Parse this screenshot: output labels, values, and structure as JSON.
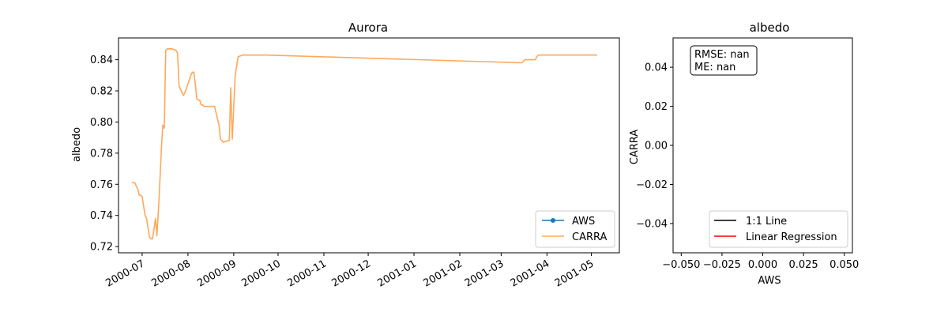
{
  "chart_data": [
    {
      "type": "line",
      "title": "Aurora",
      "xlabel": "",
      "ylabel": "albedo",
      "x_axis": "date",
      "xlim": [
        "2000-06-15",
        "2001-05-20"
      ],
      "ylim": [
        0.716,
        0.854
      ],
      "xticks": [
        "2000-07-01",
        "2000-08-01",
        "2000-09-01",
        "2000-10-01",
        "2000-11-01",
        "2000-12-01",
        "2001-01-01",
        "2001-02-01",
        "2001-03-01",
        "2001-04-01",
        "2001-05-01"
      ],
      "xtick_labels": [
        "2000-07",
        "2000-08",
        "2000-09",
        "2000-10",
        "2000-11",
        "2000-12",
        "2001-01",
        "2001-02",
        "2001-03",
        "2001-04",
        "2001-05"
      ],
      "yticks": [
        0.72,
        0.74,
        0.76,
        0.78,
        0.8,
        0.82,
        0.84
      ],
      "ytick_labels": [
        "0.72",
        "0.74",
        "0.76",
        "0.78",
        "0.80",
        "0.82",
        "0.84"
      ],
      "legend_position": "lower right",
      "legend": [
        "AWS",
        "CARRA"
      ],
      "series": [
        {
          "name": "AWS",
          "color": "#1f77b4",
          "marker": "dot",
          "points": []
        },
        {
          "name": "CARRA",
          "color": "#ffa85a",
          "points": [
            [
              "2000-06-24",
              0.761
            ],
            [
              "2000-06-26",
              0.761
            ],
            [
              "2000-06-27",
              0.759
            ],
            [
              "2000-06-28",
              0.757
            ],
            [
              "2000-06-29",
              0.753
            ],
            [
              "2000-06-30",
              0.753
            ],
            [
              "2000-07-01",
              0.752
            ],
            [
              "2000-07-02",
              0.746
            ],
            [
              "2000-07-03",
              0.74
            ],
            [
              "2000-07-04",
              0.738
            ],
            [
              "2000-07-05",
              0.732
            ],
            [
              "2000-07-06",
              0.726
            ],
            [
              "2000-07-07",
              0.725
            ],
            [
              "2000-07-08",
              0.725
            ],
            [
              "2000-07-09",
              0.731
            ],
            [
              "2000-07-10",
              0.738
            ],
            [
              "2000-07-11",
              0.727
            ],
            [
              "2000-07-12",
              0.743
            ],
            [
              "2000-07-13",
              0.762
            ],
            [
              "2000-07-14",
              0.782
            ],
            [
              "2000-07-15",
              0.798
            ],
            [
              "2000-07-16",
              0.796
            ],
            [
              "2000-07-17",
              0.846
            ],
            [
              "2000-07-18",
              0.847
            ],
            [
              "2000-07-21",
              0.847
            ],
            [
              "2000-07-24",
              0.846
            ],
            [
              "2000-07-25",
              0.844
            ],
            [
              "2000-07-26",
              0.823
            ],
            [
              "2000-07-28",
              0.819
            ],
            [
              "2000-07-29",
              0.817
            ],
            [
              "2000-07-30",
              0.819
            ],
            [
              "2000-08-03",
              0.83
            ],
            [
              "2000-08-04",
              0.832
            ],
            [
              "2000-08-05",
              0.832
            ],
            [
              "2000-08-06",
              0.824
            ],
            [
              "2000-08-07",
              0.815
            ],
            [
              "2000-08-08",
              0.814
            ],
            [
              "2000-08-09",
              0.814
            ],
            [
              "2000-08-10",
              0.811
            ],
            [
              "2000-08-11",
              0.811
            ],
            [
              "2000-08-12",
              0.81
            ],
            [
              "2000-08-19",
              0.81
            ],
            [
              "2000-08-21",
              0.802
            ],
            [
              "2000-08-22",
              0.798
            ],
            [
              "2000-08-23",
              0.789
            ],
            [
              "2000-08-25",
              0.787
            ],
            [
              "2000-08-28",
              0.788
            ],
            [
              "2000-08-29",
              0.788
            ],
            [
              "2000-08-30",
              0.822
            ],
            [
              "2000-08-31",
              0.789
            ],
            [
              "2000-09-01",
              0.81
            ],
            [
              "2000-09-02",
              0.83
            ],
            [
              "2000-09-04",
              0.842
            ],
            [
              "2000-09-07",
              0.843
            ],
            [
              "2000-09-23",
              0.843
            ],
            [
              "2001-03-15",
              0.838
            ],
            [
              "2001-03-17",
              0.84
            ],
            [
              "2001-03-24",
              0.84
            ],
            [
              "2001-03-26",
              0.843
            ],
            [
              "2001-05-05",
              0.843
            ]
          ]
        }
      ]
    },
    {
      "type": "scatter",
      "title": "albedo",
      "xlabel": "AWS",
      "ylabel": "CARRA",
      "xlim": [
        -0.055,
        0.055
      ],
      "ylim": [
        -0.055,
        0.055
      ],
      "xticks": [
        -0.05,
        -0.025,
        0.0,
        0.025,
        0.05
      ],
      "xtick_labels": [
        "−0.050",
        "−0.025",
        "0.000",
        "0.025",
        "0.050"
      ],
      "yticks": [
        -0.04,
        -0.02,
        0.0,
        0.02,
        0.04
      ],
      "ytick_labels": [
        "−0.04",
        "−0.02",
        "0.00",
        "0.02",
        "0.04"
      ],
      "annotation": [
        "RMSE: nan",
        "ME: nan"
      ],
      "annotation_position": "top-left",
      "legend_position": "lower right",
      "legend": [
        "1:1 Line",
        "Linear Regression"
      ],
      "series": [
        {
          "name": "1:1 Line",
          "color": "#000000",
          "points": []
        },
        {
          "name": "Linear Regression",
          "color": "#ff0000",
          "points": []
        }
      ]
    }
  ]
}
